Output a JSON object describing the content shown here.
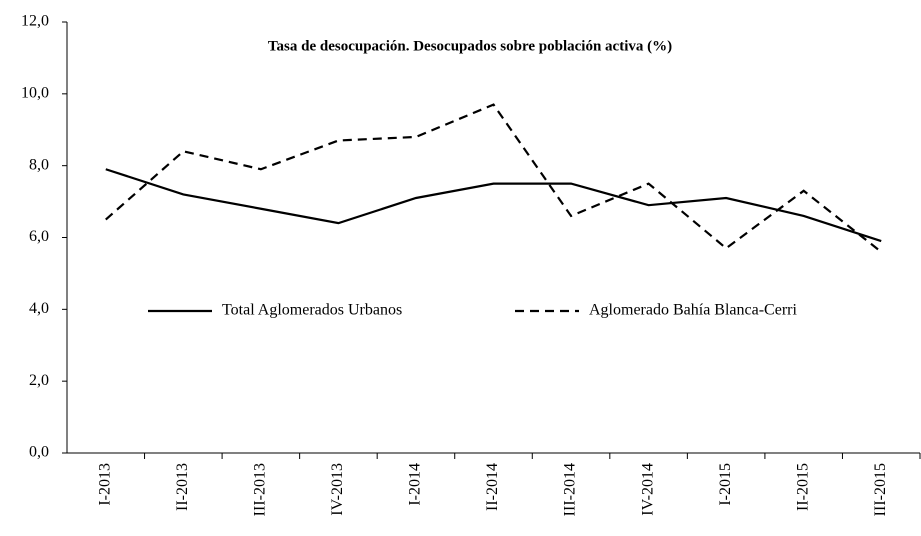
{
  "chart_data": {
    "type": "line",
    "title": "Tasa de desocupación. Desocupados sobre población activa (%)",
    "categories": [
      "I-2013",
      "II-2013",
      "III-2013",
      "IV-2013",
      "I-2014",
      "II-2014",
      "III-2014",
      "IV-2014",
      "I-2015",
      "II-2015",
      "III-2015"
    ],
    "series": [
      {
        "name": "Total Aglomerados Urbanos",
        "color": "#000000",
        "dash": "solid",
        "values": [
          7.9,
          7.2,
          6.8,
          6.4,
          7.1,
          7.5,
          7.5,
          6.9,
          7.1,
          6.6,
          5.9
        ]
      },
      {
        "name": "Aglomerado Bahía Blanca-Cerri",
        "color": "#000000",
        "dash": "dashed",
        "values": [
          6.5,
          8.4,
          7.9,
          8.7,
          8.8,
          9.7,
          6.6,
          7.5,
          5.7,
          7.3,
          5.6
        ]
      }
    ],
    "ylim": [
      0,
      12
    ],
    "yticks": [
      {
        "value": 0,
        "label": "0,0"
      },
      {
        "value": 2,
        "label": "2,0"
      },
      {
        "value": 4,
        "label": "4,0"
      },
      {
        "value": 6,
        "label": "6,0"
      },
      {
        "value": 8,
        "label": "8,0"
      },
      {
        "value": 10,
        "label": "10,0"
      },
      {
        "value": 12,
        "label": "12,0"
      }
    ],
    "grid": false
  }
}
